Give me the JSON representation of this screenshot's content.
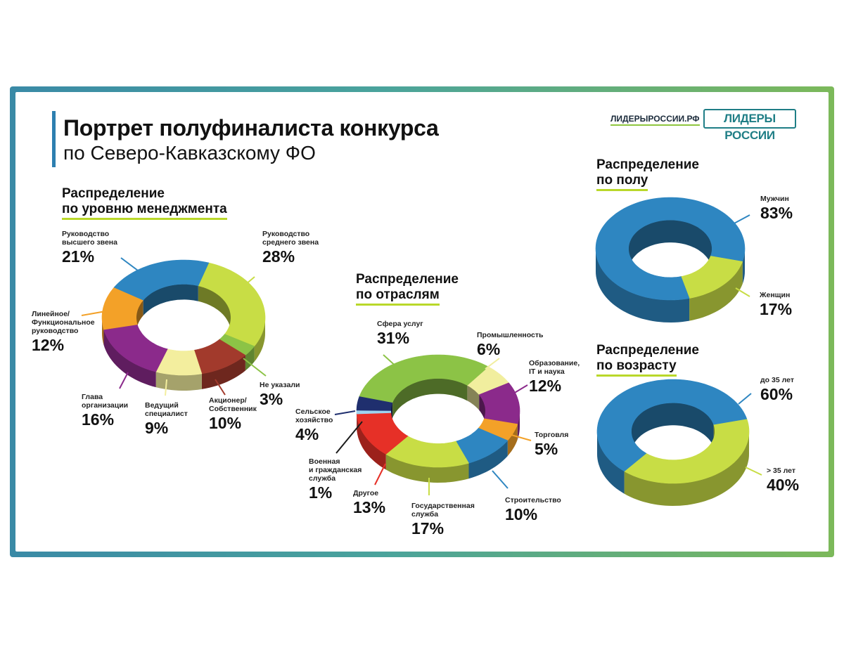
{
  "header": {
    "title": "Портрет полуфиналиста конкурса",
    "subtitle": "по Северо-Кавказскому ФО",
    "site": "ЛИДЕРЫРОССИИ.РФ",
    "logo": "ЛИДЕРЫ РОССИИ"
  },
  "colors": {
    "frame_left": "#3a8aa6",
    "frame_right": "#7cb95a",
    "title_bar": "#2d7fb0",
    "underline": "#b9d82a"
  },
  "chart_data": [
    {
      "type": "pie",
      "donut": true,
      "title_line1": "Распределение",
      "title_line2": "по уровню менеджмента",
      "slices": [
        {
          "label": "Руководство среднего звена",
          "value": 28,
          "display": "28%",
          "color": "#c8dd45"
        },
        {
          "label": "Не указали",
          "value": 3,
          "display": "3%",
          "color": "#8cc346"
        },
        {
          "label": "Акционер/ Собственник",
          "value": 10,
          "display": "10%",
          "color": "#a23a2c"
        },
        {
          "label": "Ведущий специалист",
          "value": 9,
          "display": "9%",
          "color": "#f3ee9e"
        },
        {
          "label": "Глава организации",
          "value": 16,
          "display": "16%",
          "color": "#8b2a8b"
        },
        {
          "label": "Линейное/ Функциональное руководство",
          "value": 12,
          "display": "12%",
          "color": "#f3a128"
        },
        {
          "label": "Руководство высшего звена",
          "value": 21,
          "display": "21%",
          "color": "#2e86c1"
        }
      ]
    },
    {
      "type": "pie",
      "donut": true,
      "title_line1": "Распределение",
      "title_line2": "по отраслям",
      "slices": [
        {
          "label": "Промышленность",
          "value": 6,
          "display": "6%",
          "color": "#f1ee9e"
        },
        {
          "label": "Образование, IT и наука",
          "value": 12,
          "display": "12%",
          "color": "#8b2a8b"
        },
        {
          "label": "Торговля",
          "value": 5,
          "display": "5%",
          "color": "#f3a128"
        },
        {
          "label": "Строительство",
          "value": 10,
          "display": "10%",
          "color": "#2e86c1"
        },
        {
          "label": "Государственная служба",
          "value": 17,
          "display": "17%",
          "color": "#c8dd45"
        },
        {
          "label": "Другое",
          "value": 13,
          "display": "13%",
          "color": "#e63027"
        },
        {
          "label": "Военная и гражданская служба",
          "value": 1,
          "display": "1%",
          "color": "#9ed4ef"
        },
        {
          "label": "Сельское хозяйство",
          "value": 4,
          "display": "4%",
          "color": "#1f2f6e"
        },
        {
          "label": "Сфера услуг",
          "value": 31,
          "display": "31%",
          "color": "#8cc346"
        }
      ]
    },
    {
      "type": "pie",
      "donut": true,
      "title_line1": "Распределение",
      "title_line2": "по полу",
      "slices": [
        {
          "label": "Женщин",
          "value": 17,
          "display": "17%",
          "color": "#c8dd45"
        },
        {
          "label": "Мужчин",
          "value": 83,
          "display": "83%",
          "color": "#2e86c1"
        }
      ]
    },
    {
      "type": "pie",
      "donut": true,
      "title_line1": "Распределение",
      "title_line2": "по возрасту",
      "slices": [
        {
          "label": "> 35 лет",
          "value": 40,
          "display": "40%",
          "color": "#c8dd45"
        },
        {
          "label": "до 35 лет",
          "value": 60,
          "display": "60%",
          "color": "#2e86c1"
        }
      ]
    }
  ],
  "labels": {
    "mgmt": {
      "top": {
        "t1": "Руководство",
        "t2": "высшего звена",
        "v": "21%"
      },
      "mid": {
        "t1": "Руководство",
        "t2": "среднего звена",
        "v": "28%"
      },
      "line": {
        "t1": "Линейное/",
        "t2": "Функциональное",
        "t3": "руководство",
        "v": "12%"
      },
      "head": {
        "t1": "Глава",
        "t2": "организации",
        "v": "16%"
      },
      "spec": {
        "t1": "Ведущий",
        "t2": "специалист",
        "v": "9%"
      },
      "owner": {
        "t1": "Акционер/",
        "t2": "Собственник",
        "v": "10%"
      },
      "none": {
        "t1": "Не указали",
        "v": "3%"
      }
    },
    "ind": {
      "services": {
        "t1": "Сфера услуг",
        "v": "31%"
      },
      "industry": {
        "t1": "Промышленность",
        "v": "6%"
      },
      "edu": {
        "t1": "Образование,",
        "t2": "IT и наука",
        "v": "12%"
      },
      "trade": {
        "t1": "Торговля",
        "v": "5%"
      },
      "build": {
        "t1": "Строительство",
        "v": "10%"
      },
      "gov": {
        "t1": "Государственная",
        "t2": "служба",
        "v": "17%"
      },
      "other": {
        "t1": "Другое",
        "v": "13%"
      },
      "military": {
        "t1": "Военная",
        "t2": "и гражданская",
        "t3": "служба",
        "v": "1%"
      },
      "agri": {
        "t1": "Сельское",
        "t2": "хозяйство",
        "v": "4%"
      }
    },
    "gender": {
      "men": {
        "t1": "Мужчин",
        "v": "83%"
      },
      "women": {
        "t1": "Женщин",
        "v": "17%"
      }
    },
    "age": {
      "young": {
        "t1": "до 35 лет",
        "v": "60%"
      },
      "old": {
        "t1": "> 35 лет",
        "v": "40%"
      }
    }
  }
}
